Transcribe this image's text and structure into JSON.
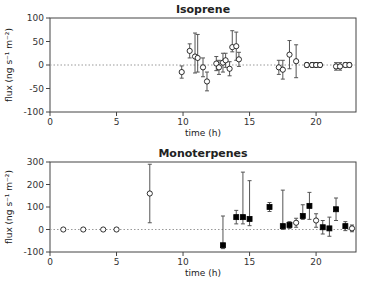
{
  "chart_data": [
    {
      "type": "scatter",
      "title": "Isoprene",
      "x_label": "time (h)",
      "y_label": "flux (ng s⁻¹ m⁻²)",
      "xlim": [
        0,
        23
      ],
      "ylim": [
        -100,
        100
      ],
      "xticks": [
        0,
        5,
        10,
        15,
        20
      ],
      "yticks": [
        -100,
        -50,
        0,
        50,
        100
      ],
      "grid": false,
      "hline": 0,
      "series": [
        {
          "marker": "circle",
          "color": "#ffffff",
          "x": [
            9.9,
            10.5,
            10.9,
            11.1,
            11.5,
            11.8,
            12.5,
            12.7,
            13.0,
            13.2,
            13.5,
            13.7,
            14.0,
            14.2,
            17.2,
            17.5,
            18.0,
            18.5,
            19.3,
            19.7,
            20.0,
            20.3,
            21.5,
            21.8,
            22.2,
            22.5
          ],
          "values": [
            -15,
            30,
            18,
            15,
            -5,
            -35,
            3,
            -5,
            5,
            10,
            -8,
            38,
            40,
            12,
            -5,
            -10,
            22,
            8,
            0,
            0,
            0,
            0,
            -3,
            -3,
            0,
            0
          ],
          "yerr_low": [
            13,
            15,
            35,
            30,
            20,
            20,
            15,
            15,
            20,
            15,
            15,
            10,
            30,
            15,
            15,
            20,
            30,
            35,
            5,
            5,
            5,
            5,
            8,
            8,
            5,
            5
          ],
          "yerr_high": [
            13,
            15,
            50,
            50,
            20,
            20,
            15,
            15,
            20,
            15,
            15,
            35,
            30,
            15,
            15,
            20,
            30,
            35,
            5,
            5,
            5,
            5,
            8,
            8,
            5,
            5
          ]
        }
      ]
    },
    {
      "type": "scatter",
      "title": "Monoterpenes",
      "x_label": "time (h)",
      "y_label": "flux (ng s⁻¹ m⁻²)",
      "xlim": [
        0,
        23
      ],
      "ylim": [
        -100,
        300
      ],
      "xticks": [
        0,
        5,
        10,
        15,
        20
      ],
      "yticks": [
        -100,
        0,
        100,
        200,
        300
      ],
      "grid": false,
      "hline": 0,
      "series": [
        {
          "marker": "circle",
          "color": "#ffffff",
          "x": [
            1.0,
            2.5,
            4.0,
            5.0,
            7.5,
            18.5,
            20.0,
            22.7
          ],
          "values": [
            0,
            0,
            0,
            0,
            160,
            30,
            40,
            5
          ],
          "yerr_low": [
            3,
            5,
            5,
            5,
            130,
            20,
            30,
            15
          ],
          "yerr_high": [
            3,
            5,
            5,
            5,
            130,
            20,
            30,
            15
          ]
        },
        {
          "marker": "square",
          "color": "#000000",
          "x": [
            13.0,
            14.0,
            14.5,
            15.0,
            16.5,
            17.5,
            18.0,
            19.0,
            19.5,
            20.5,
            21.0,
            21.5,
            22.2
          ],
          "values": [
            -70,
            55,
            55,
            47,
            100,
            15,
            20,
            60,
            105,
            10,
            5,
            90,
            15
          ],
          "yerr_low": [
            15,
            30,
            30,
            30,
            20,
            15,
            15,
            15,
            60,
            30,
            35,
            50,
            20
          ],
          "yerr_high": [
            130,
            30,
            200,
            170,
            20,
            160,
            15,
            50,
            60,
            30,
            50,
            50,
            20
          ]
        }
      ]
    }
  ]
}
